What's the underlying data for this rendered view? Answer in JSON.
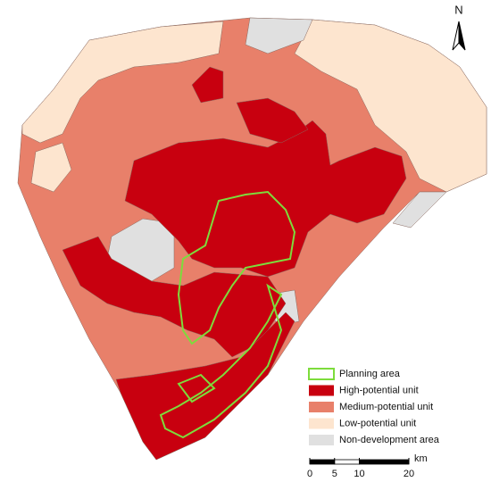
{
  "north": "N",
  "legend": [
    {
      "label": "Planning area",
      "color": "#7ddc3c",
      "outline": true
    },
    {
      "label": "High-potential unit",
      "color": "#c8000f"
    },
    {
      "label": "Medium-potential unit",
      "color": "#e8806a"
    },
    {
      "label": "Low-potential unit",
      "color": "#fde5cf"
    },
    {
      "label": "Non-development area",
      "color": "#e0e0e0"
    }
  ],
  "scale_bar": {
    "ticks": [
      0,
      5,
      10,
      20
    ],
    "unit": "km"
  }
}
